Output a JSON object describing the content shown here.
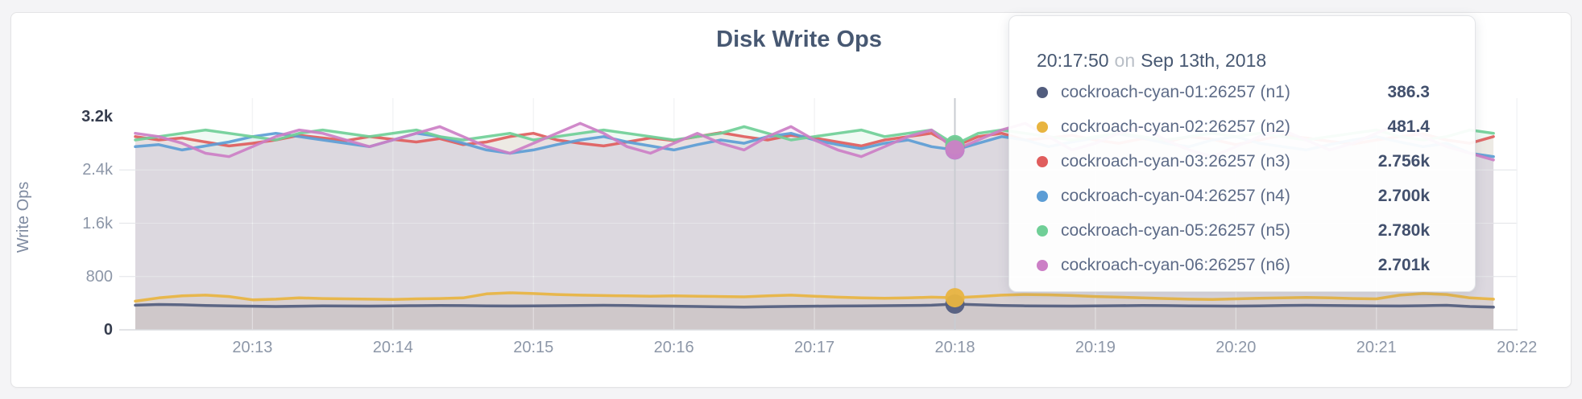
{
  "chart": {
    "title": "Disk Write Ops",
    "y_axis_label": "Write Ops",
    "y_ticks": [
      {
        "label": "3.2k",
        "value": 3200,
        "strong": true
      },
      {
        "label": "2.4k",
        "value": 2400,
        "strong": false
      },
      {
        "label": "1.6k",
        "value": 1600,
        "strong": false
      },
      {
        "label": "800",
        "value": 800,
        "strong": false
      },
      {
        "label": "0",
        "value": 0,
        "strong": true
      }
    ],
    "x_ticks": [
      "20:13",
      "20:14",
      "20:15",
      "20:16",
      "20:17",
      "20:18",
      "20:19",
      "20:20",
      "20:21",
      "20:22"
    ]
  },
  "tooltip": {
    "time": "20:17:50",
    "conjunction": "on",
    "date": "Sep 13th, 2018",
    "rows": [
      {
        "name": "cockroach-cyan-01:26257 (n1)",
        "value": "386.3",
        "color": "#525d7e"
      },
      {
        "name": "cockroach-cyan-02:26257 (n2)",
        "value": "481.4",
        "color": "#e8b440"
      },
      {
        "name": "cockroach-cyan-03:26257 (n3)",
        "value": "2.756k",
        "color": "#e05d5d"
      },
      {
        "name": "cockroach-cyan-04:26257 (n4)",
        "value": "2.700k",
        "color": "#5c9dd5"
      },
      {
        "name": "cockroach-cyan-05:26257 (n5)",
        "value": "2.780k",
        "color": "#70cf97"
      },
      {
        "name": "cockroach-cyan-06:26257 (n6)",
        "value": "2.701k",
        "color": "#cc7fc6"
      }
    ]
  },
  "colors": {
    "title_text": "#475872",
    "tick_muted": "#8d97a8",
    "tick_strong": "#363d4e",
    "grid_line": "#e6e8eb",
    "crosshair": "#c9ccd2",
    "card_background": "#ffffff",
    "page_background": "#f4f4f6"
  },
  "chart_data": {
    "type": "line",
    "title": "Disk Write Ops",
    "xlabel": "",
    "ylabel": "Write Ops",
    "ylim": [
      0,
      3200
    ],
    "x_start": "20:12:10",
    "x_step_seconds": 10,
    "x_tick_labels": [
      "20:13",
      "20:14",
      "20:15",
      "20:16",
      "20:17",
      "20:18",
      "20:19",
      "20:20",
      "20:21",
      "20:22"
    ],
    "grid": true,
    "legend_position": "tooltip",
    "highlight_index": 35,
    "highlight_time": "20:17:50",
    "series": [
      {
        "name": "cockroach-cyan-01:26257 (n1)",
        "color": "#525d7e",
        "values": [
          370,
          380,
          375,
          365,
          360,
          355,
          350,
          355,
          360,
          358,
          356,
          360,
          362,
          365,
          363,
          360,
          358,
          360,
          362,
          365,
          368,
          365,
          360,
          355,
          350,
          345,
          342,
          348,
          352,
          355,
          358,
          360,
          362,
          365,
          370,
          386.3,
          375,
          365,
          360,
          358,
          356,
          360,
          362,
          365,
          363,
          360,
          358,
          356,
          360,
          365,
          368,
          365,
          362,
          360,
          358,
          362,
          368,
          350,
          340
        ]
      },
      {
        "name": "cockroach-cyan-02:26257 (n2)",
        "color": "#e8b440",
        "values": [
          430,
          480,
          510,
          520,
          500,
          450,
          460,
          480,
          470,
          465,
          460,
          455,
          465,
          470,
          480,
          540,
          555,
          545,
          530,
          520,
          515,
          510,
          505,
          510,
          505,
          500,
          495,
          510,
          520,
          505,
          490,
          480,
          475,
          480,
          490,
          481.4,
          500,
          520,
          530,
          525,
          515,
          500,
          490,
          480,
          470,
          460,
          455,
          465,
          475,
          480,
          485,
          480,
          470,
          465,
          520,
          545,
          530,
          480,
          460
        ]
      },
      {
        "name": "cockroach-cyan-03:26257 (n3)",
        "color": "#e05d5d",
        "values": [
          2900,
          2850,
          2880,
          2820,
          2760,
          2800,
          2850,
          2920,
          2880,
          2840,
          2900,
          2860,
          2820,
          2870,
          2780,
          2820,
          2900,
          2950,
          2850,
          2800,
          2760,
          2820,
          2880,
          2840,
          2900,
          2960,
          2900,
          2850,
          2920,
          2880,
          2820,
          2760,
          2850,
          2900,
          2950,
          2756,
          2900,
          2950,
          2850,
          2880,
          2920,
          2850,
          2800,
          2870,
          2820,
          2900,
          2860,
          2780,
          2850,
          2920,
          2880,
          2830,
          2790,
          2850,
          2900,
          2940,
          2850,
          2800,
          2900
        ]
      },
      {
        "name": "cockroach-cyan-04:26257 (n4)",
        "color": "#5c9dd5",
        "values": [
          2750,
          2780,
          2700,
          2760,
          2820,
          2900,
          2950,
          2900,
          2850,
          2800,
          2750,
          2850,
          2950,
          2900,
          2800,
          2700,
          2650,
          2700,
          2780,
          2850,
          2900,
          2820,
          2760,
          2700,
          2780,
          2850,
          2800,
          2900,
          2950,
          2850,
          2780,
          2720,
          2800,
          2850,
          2750,
          2700,
          2800,
          2900,
          2850,
          2750,
          2820,
          2880,
          2940,
          2880,
          2800,
          2750,
          2850,
          2900,
          2800,
          2750,
          2700,
          2780,
          2850,
          2900,
          2820,
          2750,
          2800,
          2650,
          2600
        ]
      },
      {
        "name": "cockroach-cyan-05:26257 (n5)",
        "color": "#70cf97",
        "values": [
          2850,
          2900,
          2950,
          3000,
          2950,
          2900,
          2850,
          2950,
          3000,
          2950,
          2900,
          2950,
          3000,
          2900,
          2850,
          2900,
          2950,
          2850,
          2900,
          2950,
          3000,
          2950,
          2900,
          2850,
          2900,
          2950,
          3050,
          2950,
          2850,
          2900,
          2950,
          3000,
          2900,
          2950,
          3000,
          2780,
          2950,
          3000,
          2950,
          2900,
          2850,
          2900,
          2950,
          2900,
          2850,
          2900,
          2950,
          2900,
          2950,
          2900,
          2850,
          2900,
          2950,
          3000,
          2900,
          2850,
          2900,
          3000,
          2950
        ]
      },
      {
        "name": "cockroach-cyan-06:26257 (n6)",
        "color": "#cc7fc6",
        "values": [
          2950,
          2900,
          2800,
          2650,
          2600,
          2750,
          2900,
          3000,
          2950,
          2850,
          2750,
          2850,
          2950,
          3050,
          2900,
          2750,
          2650,
          2800,
          2950,
          3100,
          2950,
          2750,
          2650,
          2800,
          2950,
          2800,
          2700,
          2900,
          3050,
          2850,
          2700,
          2600,
          2750,
          2900,
          3000,
          2701,
          2850,
          3000,
          3100,
          2900,
          2700,
          2800,
          2950,
          3050,
          2850,
          2700,
          2600,
          2750,
          2900,
          3000,
          2850,
          2700,
          2800,
          2950,
          3100,
          2900,
          2750,
          2650,
          2550
        ]
      }
    ]
  }
}
